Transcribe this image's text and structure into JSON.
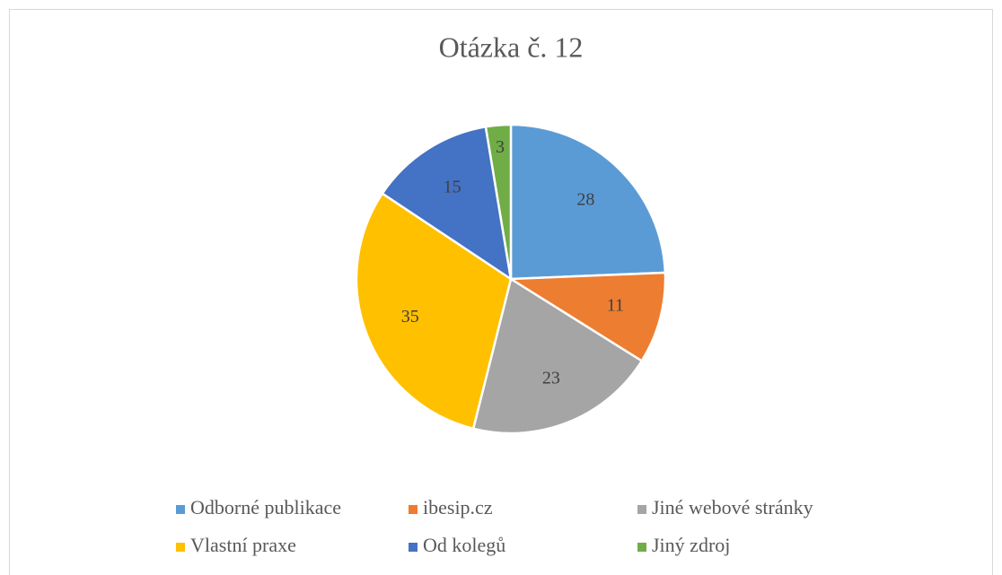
{
  "chart_data": {
    "type": "pie",
    "title": "Otázka č. 12",
    "categories": [
      "Odborné publikace",
      "ibesip.cz",
      "Jiné webové stránky",
      "Vlastní praxe",
      "Od kolegů",
      "Jiný zdroj"
    ],
    "values": [
      28,
      11,
      23,
      35,
      15,
      3
    ],
    "colors": [
      "#5b9bd5",
      "#ed7d31",
      "#a5a5a5",
      "#ffc000",
      "#4472c4",
      "#70ad47"
    ],
    "legend": "bottom"
  }
}
